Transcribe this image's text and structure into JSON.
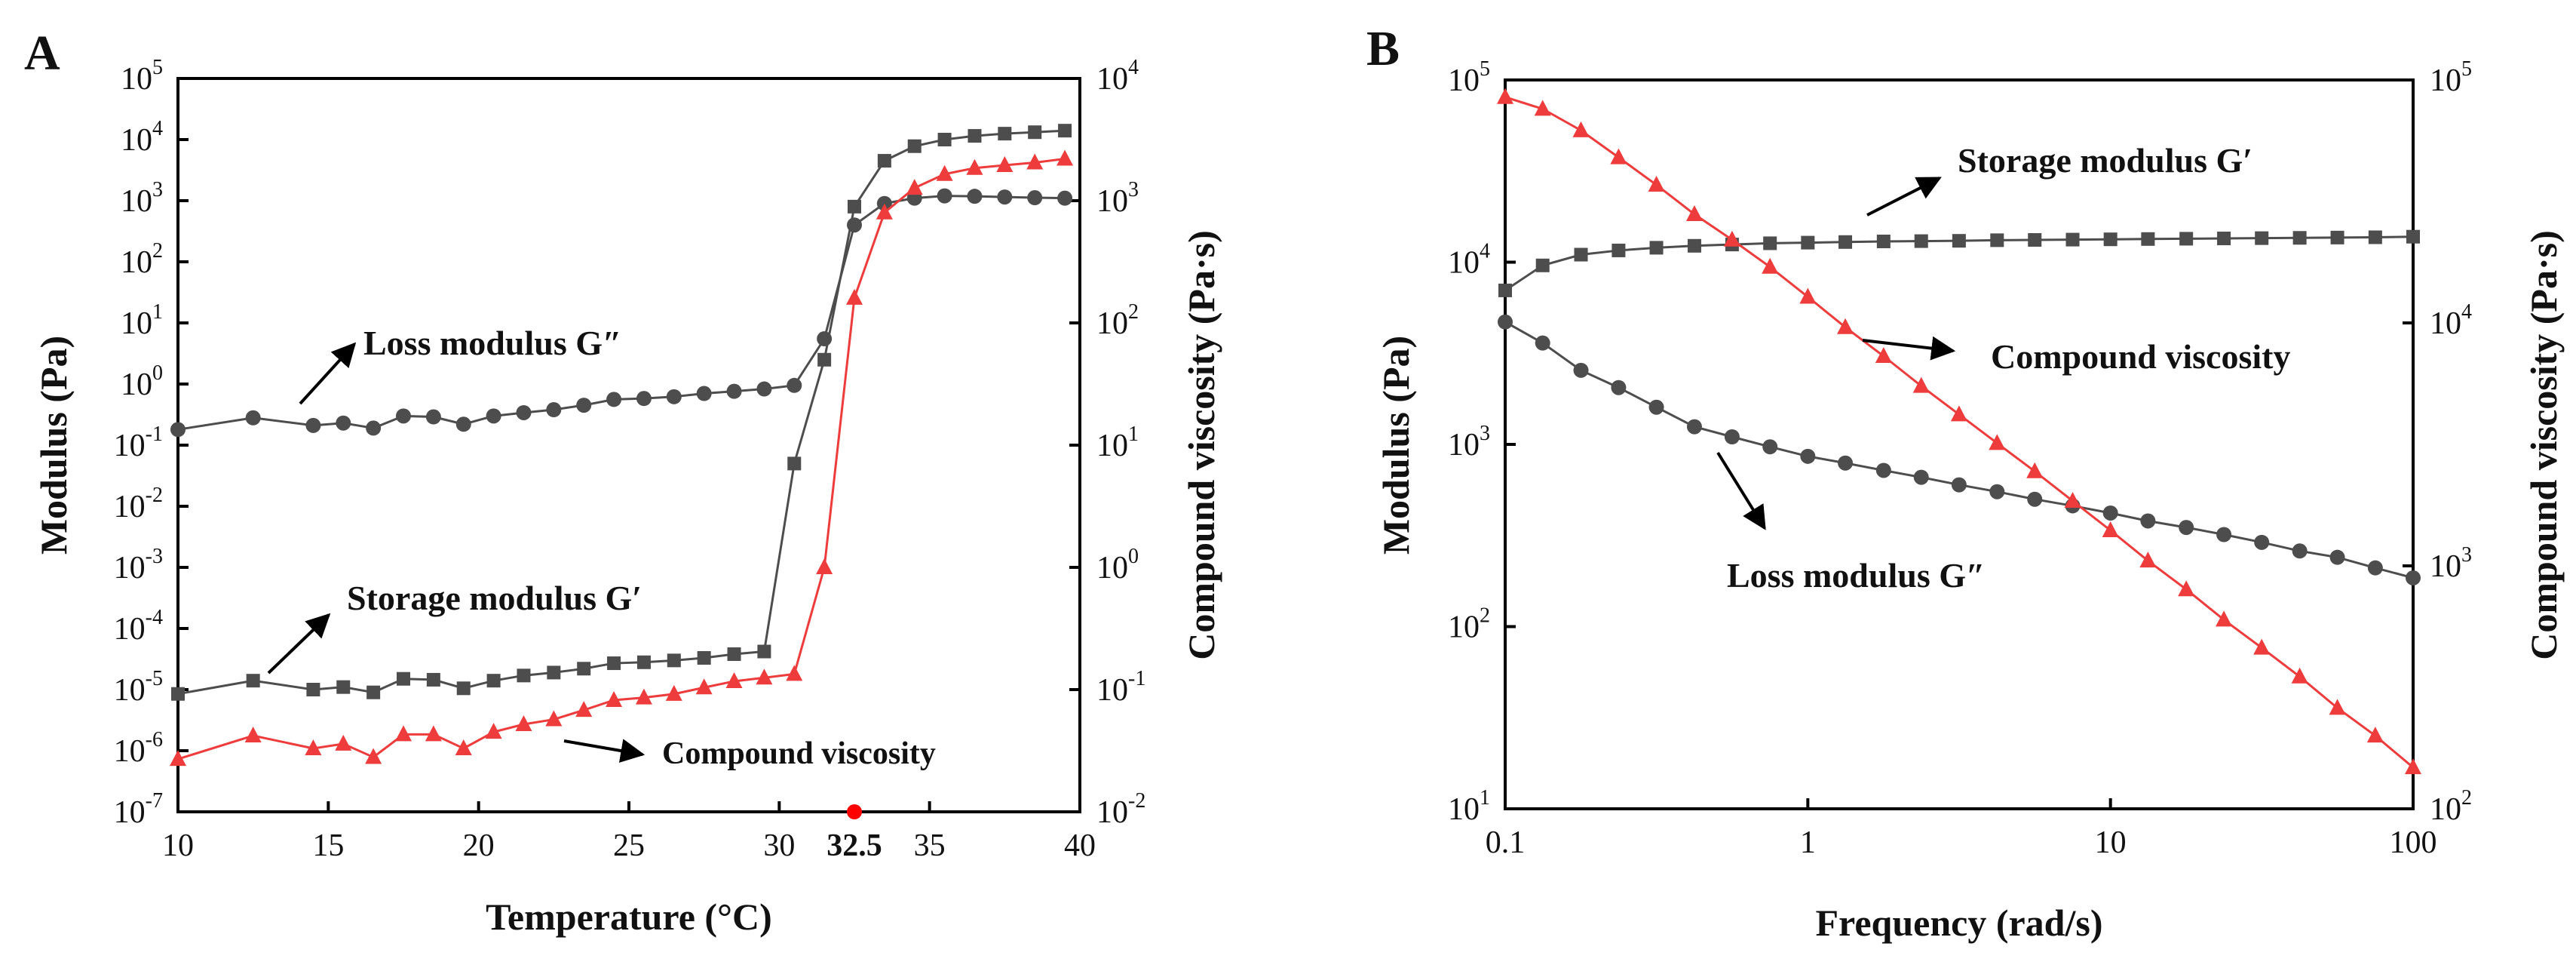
{
  "chart_data": [
    {
      "type": "line",
      "panel_label": "A",
      "xlabel": "Temperature (°C)",
      "ylabel_left": "Modulus (Pa)",
      "ylabel_right": "Compound viscosity (Pa·s)",
      "x_ticks": [
        "10",
        "15",
        "20",
        "25",
        "30",
        "35",
        "40"
      ],
      "xlim": [
        10,
        40
      ],
      "ylim_left_exp": [
        -7,
        5
      ],
      "ylim_right_exp": [
        -2,
        4
      ],
      "left_ticks": [
        {
          "base": "10",
          "exp": "5"
        },
        {
          "base": "10",
          "exp": "4"
        },
        {
          "base": "10",
          "exp": "3"
        },
        {
          "base": "10",
          "exp": "2"
        },
        {
          "base": "10",
          "exp": "1"
        },
        {
          "base": "10",
          "exp": "0"
        },
        {
          "base": "10",
          "exp": "-1"
        },
        {
          "base": "10",
          "exp": "-2"
        },
        {
          "base": "10",
          "exp": "-3"
        },
        {
          "base": "10",
          "exp": "-4"
        },
        {
          "base": "10",
          "exp": "-5"
        },
        {
          "base": "10",
          "exp": "-6"
        },
        {
          "base": "10",
          "exp": "-7"
        }
      ],
      "right_ticks": [
        {
          "base": "10",
          "exp": "4"
        },
        {
          "base": "10",
          "exp": "3"
        },
        {
          "base": "10",
          "exp": "2"
        },
        {
          "base": "10",
          "exp": "1"
        },
        {
          "base": "10",
          "exp": "0"
        },
        {
          "base": "10",
          "exp": "-1"
        },
        {
          "base": "10",
          "exp": "-2"
        }
      ],
      "x": [
        10,
        12.5,
        14.5,
        15.5,
        16.5,
        17.5,
        18.5,
        19.5,
        20.5,
        21.5,
        22.5,
        23.5,
        24.5,
        25.5,
        26.5,
        27.5,
        28.5,
        29.5,
        30.5,
        31.5,
        32.5,
        33.5,
        34.5,
        35.5,
        36.5,
        37.5,
        38.5,
        39.5
      ],
      "series": [
        {
          "name": "Storage modulus G′",
          "axis": "left",
          "marker": "square",
          "color": "#4d4d4d",
          "values": [
            8.5e-06,
            1.4e-05,
            1e-05,
            1.1e-05,
            9e-06,
            1.5e-05,
            1.45e-05,
            1.05e-05,
            1.4e-05,
            1.7e-05,
            1.9e-05,
            2.2e-05,
            2.7e-05,
            2.8e-05,
            3e-05,
            3.3e-05,
            3.8e-05,
            4.2e-05,
            0.05,
            2.5,
            800,
            4500,
            7800,
            10000,
            11500,
            12500,
            13200,
            14000
          ]
        },
        {
          "name": "Loss modulus G″",
          "axis": "left",
          "marker": "circle",
          "color": "#4d4d4d",
          "values": [
            0.18,
            0.28,
            0.21,
            0.23,
            0.19,
            0.3,
            0.29,
            0.22,
            0.3,
            0.34,
            0.38,
            0.45,
            0.56,
            0.58,
            0.62,
            0.7,
            0.76,
            0.83,
            0.95,
            5.5,
            400,
            900,
            1100,
            1200,
            1180,
            1150,
            1120,
            1100
          ]
        },
        {
          "name": "Compound viscosity",
          "axis": "right",
          "marker": "triangle",
          "color": "#ee3b3b",
          "values": [
            0.027,
            0.042,
            0.033,
            0.036,
            0.028,
            0.043,
            0.043,
            0.033,
            0.045,
            0.052,
            0.057,
            0.068,
            0.082,
            0.086,
            0.092,
            0.104,
            0.117,
            0.125,
            0.134,
            1.0,
            160,
            800,
            1270,
            1650,
            1850,
            1950,
            2050,
            2200
          ]
        }
      ],
      "annotations": [
        "Loss modulus G″",
        "Storage modulus G′",
        "Compound viscosity"
      ],
      "highlight": {
        "x": 32.5,
        "label": "32.5",
        "color": "#ff0000"
      }
    },
    {
      "type": "line",
      "panel_label": "B",
      "xlabel": "Frequency (rad/s)",
      "ylabel_left": "Modulus (Pa)",
      "ylabel_right": "Compound viscosity (Pa·s)",
      "x_ticks": [
        "0.1",
        "1",
        "10",
        "100"
      ],
      "xlim": [
        0.1,
        100
      ],
      "ylim_left_exp": [
        1,
        5
      ],
      "ylim_right_exp": [
        2,
        5
      ],
      "left_ticks": [
        {
          "base": "10",
          "exp": "5"
        },
        {
          "base": "10",
          "exp": "4"
        },
        {
          "base": "10",
          "exp": "3"
        },
        {
          "base": "10",
          "exp": "2"
        },
        {
          "base": "10",
          "exp": "1"
        }
      ],
      "right_ticks": [
        {
          "base": "10",
          "exp": "5"
        },
        {
          "base": "10",
          "exp": "4"
        },
        {
          "base": "10",
          "exp": "3"
        },
        {
          "base": "10",
          "exp": "2"
        }
      ],
      "x": [
        0.1,
        0.133,
        0.178,
        0.237,
        0.316,
        0.422,
        0.562,
        0.75,
        1.0,
        1.33,
        1.78,
        2.37,
        3.16,
        4.22,
        5.62,
        7.5,
        10,
        13.3,
        17.8,
        23.7,
        31.6,
        42.2,
        56.2,
        75,
        100
      ],
      "series": [
        {
          "name": "Storage modulus G′",
          "axis": "left",
          "marker": "square",
          "color": "#4d4d4d",
          "values": [
            7000,
            9600,
            11000,
            11600,
            12000,
            12300,
            12500,
            12700,
            12800,
            12900,
            13000,
            13050,
            13100,
            13200,
            13250,
            13300,
            13350,
            13400,
            13450,
            13500,
            13550,
            13600,
            13650,
            13700,
            13800
          ]
        },
        {
          "name": "Loss modulus G″",
          "axis": "left",
          "marker": "circle",
          "color": "#4d4d4d",
          "values": [
            4700,
            3600,
            2550,
            2050,
            1600,
            1250,
            1100,
            970,
            860,
            790,
            720,
            660,
            600,
            550,
            500,
            460,
            420,
            380,
            350,
            320,
            290,
            260,
            240,
            210,
            185
          ]
        },
        {
          "name": "Compound viscosity",
          "axis": "right",
          "marker": "triangle",
          "color": "#ee3b3b",
          "values": [
            85000,
            76000,
            62000,
            48000,
            37000,
            28000,
            22000,
            17000,
            12800,
            9600,
            7300,
            5500,
            4200,
            3200,
            2450,
            1850,
            1400,
            1050,
            800,
            600,
            460,
            350,
            260,
            200,
            148
          ]
        }
      ],
      "annotations": [
        "Storage modulus G′",
        "Compound viscosity",
        "Loss modulus G″"
      ]
    }
  ]
}
